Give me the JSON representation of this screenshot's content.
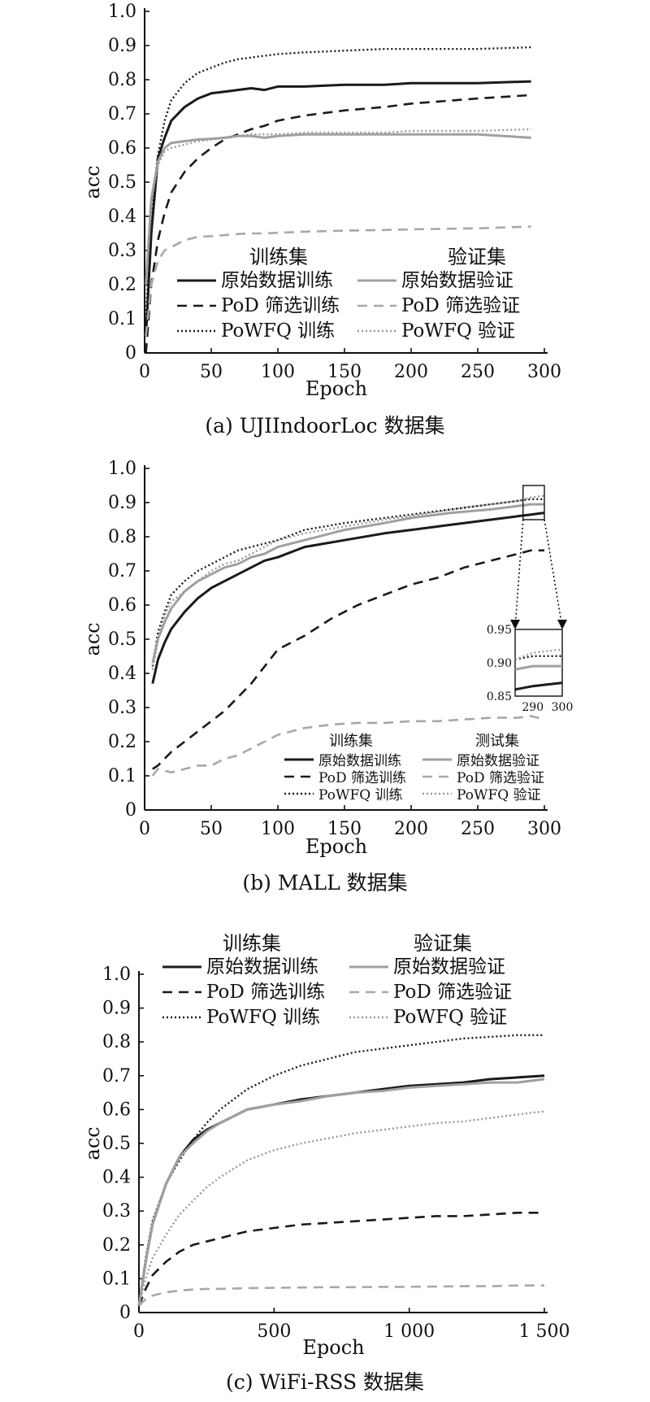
{
  "styles": {
    "train_original": {
      "color": "#1a1a1a",
      "width": 3,
      "dash": ""
    },
    "train_pod": {
      "color": "#1a1a1a",
      "width": 2.6,
      "dash": "12 8"
    },
    "train_powfq": {
      "color": "#1a1a1a",
      "width": 2.4,
      "dash": "2 3"
    },
    "val_original": {
      "color": "#a0a0a0",
      "width": 3,
      "dash": ""
    },
    "val_pod": {
      "color": "#a8a8a8",
      "width": 2.6,
      "dash": "12 8"
    },
    "val_powfq": {
      "color": "#9a9a9a",
      "width": 2.4,
      "dash": "2 3"
    }
  },
  "chart_data": [
    {
      "type": "line",
      "caption": "(a) UJIIndoorLoc 数据集",
      "xlabel": "Epoch",
      "ylabel": "acc",
      "xlim": [
        0,
        300
      ],
      "ylim": [
        0,
        1.0
      ],
      "xticks": [
        "0",
        "50",
        "100",
        "150",
        "200",
        "250",
        "300"
      ],
      "yticks": [
        "0",
        "0.1",
        "0.2",
        "0.3",
        "0.4",
        "0.5",
        "0.6",
        "0.7",
        "0.8",
        "0.9",
        "1.0"
      ],
      "legend_header_left": "训练集",
      "legend_header_right": "验证集",
      "series": [
        {
          "name": "原始数据训练",
          "style": "train_original",
          "x": [
            1,
            5,
            10,
            15,
            20,
            30,
            40,
            50,
            60,
            70,
            80,
            90,
            100,
            120,
            150,
            180,
            200,
            250,
            290
          ],
          "y": [
            0.05,
            0.35,
            0.57,
            0.63,
            0.68,
            0.72,
            0.745,
            0.76,
            0.765,
            0.77,
            0.775,
            0.77,
            0.78,
            0.78,
            0.785,
            0.785,
            0.79,
            0.79,
            0.795
          ]
        },
        {
          "name": "PoD 筛选训练",
          "style": "train_pod",
          "x": [
            1,
            5,
            10,
            15,
            20,
            30,
            40,
            50,
            60,
            70,
            80,
            90,
            100,
            120,
            150,
            180,
            200,
            250,
            290
          ],
          "y": [
            0.0,
            0.2,
            0.33,
            0.41,
            0.47,
            0.53,
            0.57,
            0.6,
            0.625,
            0.64,
            0.655,
            0.665,
            0.68,
            0.695,
            0.71,
            0.72,
            0.73,
            0.745,
            0.755
          ]
        },
        {
          "name": "PoWFQ 训练",
          "style": "train_powfq",
          "x": [
            1,
            5,
            10,
            15,
            20,
            30,
            40,
            50,
            60,
            70,
            80,
            90,
            100,
            120,
            150,
            180,
            200,
            250,
            290
          ],
          "y": [
            0.1,
            0.42,
            0.58,
            0.68,
            0.74,
            0.79,
            0.82,
            0.835,
            0.85,
            0.86,
            0.865,
            0.87,
            0.875,
            0.88,
            0.885,
            0.89,
            0.89,
            0.89,
            0.895
          ]
        },
        {
          "name": "原始数据验证",
          "style": "val_original",
          "x": [
            1,
            5,
            10,
            15,
            20,
            30,
            40,
            50,
            60,
            70,
            80,
            90,
            100,
            120,
            150,
            180,
            200,
            250,
            290
          ],
          "y": [
            0.2,
            0.45,
            0.56,
            0.6,
            0.615,
            0.62,
            0.625,
            0.627,
            0.63,
            0.635,
            0.635,
            0.63,
            0.635,
            0.64,
            0.64,
            0.64,
            0.64,
            0.64,
            0.63
          ]
        },
        {
          "name": "PoD 筛选验证",
          "style": "val_pod",
          "x": [
            1,
            5,
            10,
            15,
            20,
            30,
            40,
            50,
            60,
            70,
            80,
            90,
            100,
            120,
            150,
            180,
            200,
            250,
            290
          ],
          "y": [
            0.05,
            0.2,
            0.27,
            0.3,
            0.31,
            0.33,
            0.34,
            0.342,
            0.345,
            0.348,
            0.35,
            0.35,
            0.352,
            0.355,
            0.358,
            0.36,
            0.362,
            0.365,
            0.37
          ]
        },
        {
          "name": "PoWFQ 验证",
          "style": "val_powfq",
          "x": [
            1,
            5,
            10,
            15,
            20,
            30,
            40,
            50,
            60,
            70,
            80,
            90,
            100,
            120,
            150,
            180,
            200,
            250,
            290
          ],
          "y": [
            0.2,
            0.44,
            0.55,
            0.59,
            0.6,
            0.61,
            0.62,
            0.625,
            0.63,
            0.635,
            0.64,
            0.64,
            0.64,
            0.645,
            0.645,
            0.645,
            0.65,
            0.65,
            0.655
          ]
        }
      ]
    },
    {
      "type": "line",
      "caption": "(b) MALL 数据集",
      "xlabel": "Epoch",
      "ylabel": "acc",
      "xlim": [
        0,
        300
      ],
      "ylim": [
        0,
        1.0
      ],
      "xticks": [
        "0",
        "50",
        "100",
        "150",
        "200",
        "250",
        "300"
      ],
      "yticks": [
        "0",
        "0.1",
        "0.2",
        "0.3",
        "0.4",
        "0.5",
        "0.6",
        "0.7",
        "0.8",
        "0.9",
        "1.0"
      ],
      "legend_header_left": "训练集",
      "legend_header_right": "测试集",
      "inset": {
        "xlim": [
          284,
          300
        ],
        "ylim": [
          0.85,
          0.95
        ],
        "yticks": [
          "0.85",
          "0.90",
          "0.95"
        ],
        "xticks": [
          "290",
          "300"
        ]
      },
      "series": [
        {
          "name": "原始数据训练",
          "style": "train_original",
          "x": [
            6,
            10,
            15,
            20,
            30,
            40,
            50,
            60,
            70,
            80,
            90,
            100,
            120,
            150,
            180,
            200,
            230,
            260,
            280,
            290,
            300
          ],
          "y": [
            0.37,
            0.44,
            0.49,
            0.53,
            0.58,
            0.62,
            0.65,
            0.67,
            0.69,
            0.71,
            0.73,
            0.74,
            0.77,
            0.79,
            0.81,
            0.82,
            0.835,
            0.85,
            0.86,
            0.865,
            0.87
          ]
        },
        {
          "name": "PoD 筛选训练",
          "style": "train_pod",
          "x": [
            6,
            10,
            20,
            30,
            40,
            50,
            60,
            70,
            80,
            90,
            100,
            120,
            140,
            160,
            180,
            200,
            220,
            240,
            260,
            280,
            290,
            300
          ],
          "y": [
            0.12,
            0.13,
            0.17,
            0.2,
            0.23,
            0.26,
            0.29,
            0.33,
            0.37,
            0.42,
            0.47,
            0.51,
            0.56,
            0.6,
            0.63,
            0.66,
            0.68,
            0.71,
            0.73,
            0.75,
            0.76,
            0.76
          ]
        },
        {
          "name": "PoWFQ 训练",
          "style": "train_powfq",
          "x": [
            6,
            10,
            15,
            20,
            30,
            40,
            50,
            60,
            70,
            80,
            90,
            100,
            120,
            150,
            180,
            200,
            230,
            260,
            280,
            290,
            300
          ],
          "y": [
            0.42,
            0.52,
            0.58,
            0.63,
            0.67,
            0.7,
            0.72,
            0.74,
            0.76,
            0.77,
            0.78,
            0.79,
            0.82,
            0.84,
            0.855,
            0.865,
            0.88,
            0.895,
            0.905,
            0.91,
            0.91
          ]
        },
        {
          "name": "原始数据验证",
          "style": "val_original",
          "x": [
            6,
            10,
            15,
            20,
            30,
            40,
            50,
            60,
            70,
            80,
            90,
            100,
            120,
            150,
            180,
            200,
            230,
            260,
            280,
            290,
            300
          ],
          "y": [
            0.43,
            0.5,
            0.55,
            0.59,
            0.64,
            0.67,
            0.69,
            0.71,
            0.72,
            0.74,
            0.75,
            0.77,
            0.79,
            0.82,
            0.84,
            0.855,
            0.87,
            0.88,
            0.89,
            0.895,
            0.895
          ]
        },
        {
          "name": "PoD 筛选验证",
          "style": "val_pod",
          "x": [
            6,
            10,
            20,
            30,
            40,
            50,
            60,
            70,
            80,
            90,
            100,
            120,
            140,
            160,
            180,
            200,
            220,
            240,
            260,
            280,
            290,
            300
          ],
          "y": [
            0.1,
            0.12,
            0.11,
            0.12,
            0.13,
            0.13,
            0.15,
            0.16,
            0.18,
            0.2,
            0.22,
            0.24,
            0.25,
            0.255,
            0.255,
            0.26,
            0.26,
            0.265,
            0.27,
            0.27,
            0.275,
            0.265
          ]
        },
        {
          "name": "PoWFQ 验证",
          "style": "val_powfq",
          "x": [
            6,
            10,
            15,
            20,
            30,
            40,
            50,
            60,
            70,
            80,
            90,
            100,
            120,
            150,
            180,
            200,
            230,
            260,
            280,
            290,
            300
          ],
          "y": [
            0.41,
            0.5,
            0.57,
            0.61,
            0.64,
            0.67,
            0.7,
            0.72,
            0.73,
            0.75,
            0.77,
            0.79,
            0.81,
            0.83,
            0.85,
            0.86,
            0.88,
            0.895,
            0.905,
            0.915,
            0.92
          ]
        }
      ]
    },
    {
      "type": "line",
      "caption": "(c) WiFi-RSS 数据集",
      "xlabel": "Epoch",
      "ylabel": "acc",
      "xlim": [
        0,
        1500
      ],
      "ylim": [
        0,
        1.0
      ],
      "xticks": [
        "0",
        "500",
        "1 000",
        "1 500"
      ],
      "yticks": [
        "0",
        "0.1",
        "0.2",
        "0.3",
        "0.4",
        "0.5",
        "0.6",
        "0.7",
        "0.8",
        "0.9",
        "1.0"
      ],
      "legend_header_left": "训练集",
      "legend_header_right": "验证集",
      "series": [
        {
          "name": "原始数据训练",
          "style": "train_original",
          "x": [
            0,
            25,
            50,
            100,
            150,
            200,
            250,
            300,
            400,
            500,
            600,
            700,
            800,
            900,
            1000,
            1100,
            1200,
            1300,
            1400,
            1500
          ],
          "y": [
            0.02,
            0.15,
            0.26,
            0.38,
            0.46,
            0.51,
            0.54,
            0.56,
            0.6,
            0.615,
            0.63,
            0.64,
            0.65,
            0.66,
            0.67,
            0.675,
            0.68,
            0.69,
            0.695,
            0.7
          ]
        },
        {
          "name": "PoD 筛选训练",
          "style": "train_pod",
          "x": [
            0,
            25,
            50,
            100,
            150,
            200,
            250,
            300,
            400,
            500,
            600,
            700,
            800,
            900,
            1000,
            1100,
            1200,
            1300,
            1400,
            1500
          ],
          "y": [
            0.02,
            0.07,
            0.11,
            0.15,
            0.18,
            0.2,
            0.21,
            0.22,
            0.24,
            0.25,
            0.26,
            0.265,
            0.27,
            0.275,
            0.28,
            0.285,
            0.285,
            0.29,
            0.295,
            0.295
          ]
        },
        {
          "name": "PoWFQ 训练",
          "style": "train_powfq",
          "x": [
            0,
            25,
            50,
            100,
            150,
            200,
            250,
            300,
            400,
            500,
            600,
            700,
            800,
            900,
            1000,
            1100,
            1200,
            1300,
            1400,
            1500
          ],
          "y": [
            0.02,
            0.16,
            0.27,
            0.38,
            0.45,
            0.51,
            0.56,
            0.6,
            0.66,
            0.7,
            0.73,
            0.75,
            0.77,
            0.78,
            0.79,
            0.8,
            0.81,
            0.815,
            0.82,
            0.82
          ]
        },
        {
          "name": "原始数据验证",
          "style": "val_original",
          "x": [
            0,
            25,
            50,
            100,
            150,
            200,
            250,
            300,
            400,
            500,
            600,
            700,
            800,
            900,
            1000,
            1100,
            1200,
            1300,
            1400,
            1500
          ],
          "y": [
            0.02,
            0.15,
            0.26,
            0.38,
            0.46,
            0.5,
            0.535,
            0.56,
            0.6,
            0.615,
            0.625,
            0.64,
            0.65,
            0.655,
            0.665,
            0.67,
            0.675,
            0.68,
            0.68,
            0.69
          ]
        },
        {
          "name": "PoD 筛选验证",
          "style": "val_pod",
          "x": [
            0,
            25,
            50,
            100,
            150,
            200,
            250,
            300,
            400,
            500,
            600,
            700,
            800,
            900,
            1000,
            1100,
            1200,
            1300,
            1400,
            1500
          ],
          "y": [
            0.02,
            0.04,
            0.05,
            0.06,
            0.065,
            0.068,
            0.07,
            0.07,
            0.072,
            0.073,
            0.074,
            0.075,
            0.075,
            0.076,
            0.076,
            0.077,
            0.078,
            0.078,
            0.08,
            0.08
          ]
        },
        {
          "name": "PoWFQ 验证",
          "style": "val_powfq",
          "x": [
            0,
            25,
            50,
            100,
            150,
            200,
            250,
            300,
            400,
            500,
            600,
            700,
            800,
            900,
            1000,
            1100,
            1200,
            1300,
            1400,
            1500
          ],
          "y": [
            0.02,
            0.1,
            0.16,
            0.23,
            0.29,
            0.33,
            0.37,
            0.4,
            0.45,
            0.48,
            0.5,
            0.515,
            0.53,
            0.54,
            0.55,
            0.56,
            0.565,
            0.575,
            0.585,
            0.595
          ]
        }
      ]
    }
  ]
}
